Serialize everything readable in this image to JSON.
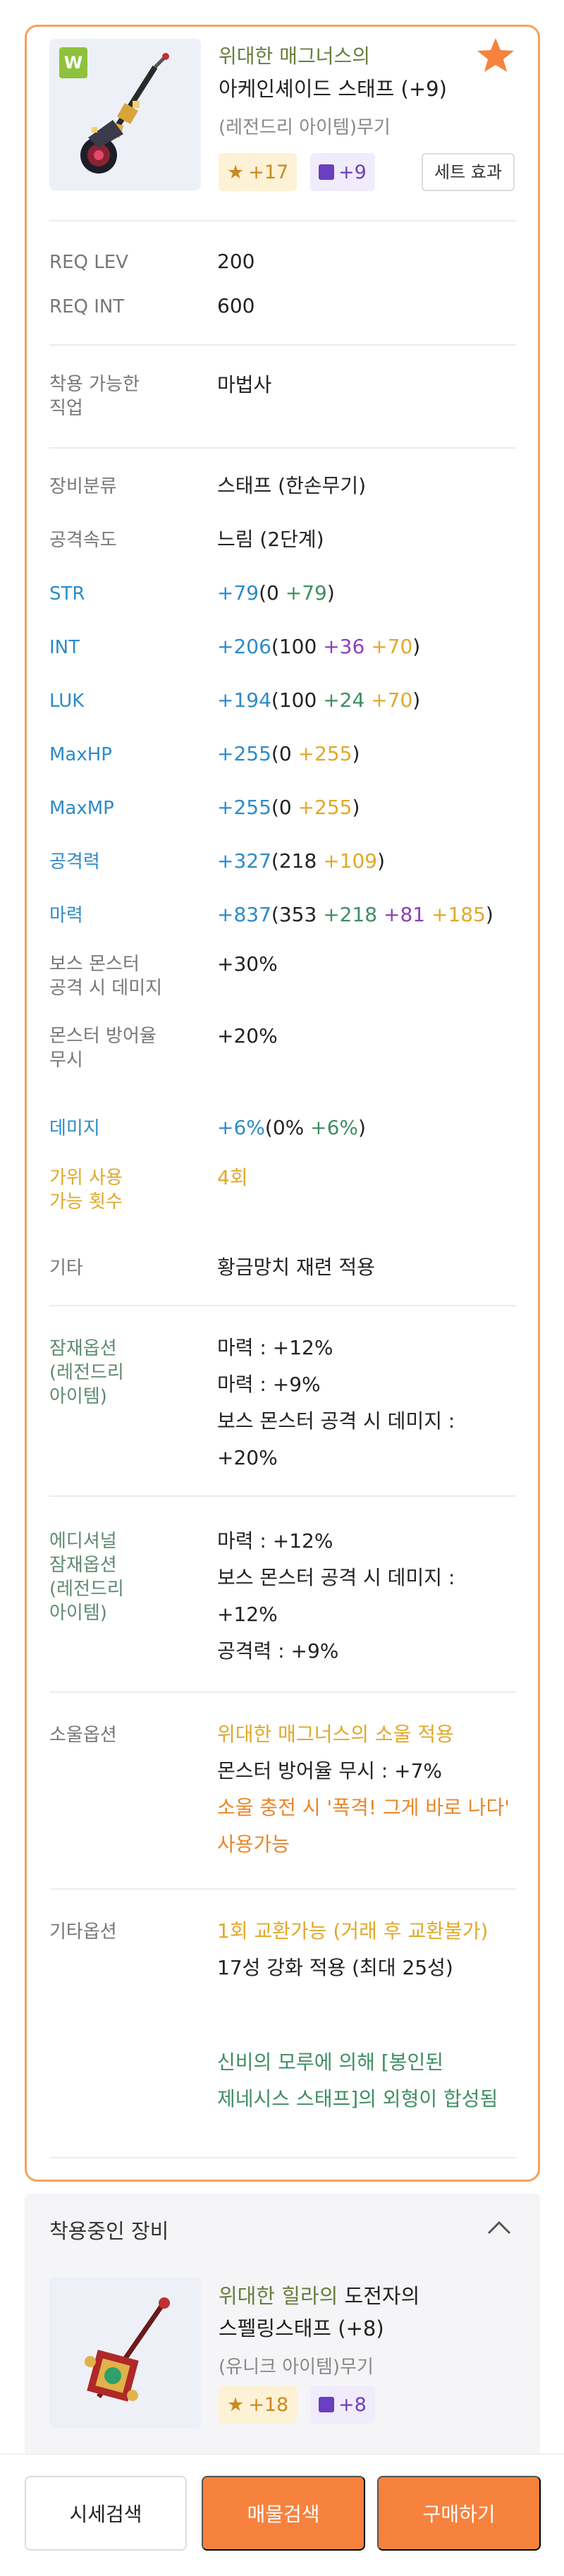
{
  "item": {
    "prefix": "위대한 매그너스의",
    "name": "아케인셰이드 스태프 (+9)",
    "rarity_type": "(레전드리 아이템)무기",
    "badge": "W",
    "star_force": "+17",
    "scroll_count": "+9",
    "set_effect_label": "세트 효과",
    "favorite_icon": "star-icon",
    "accent_color": "#f6823e"
  },
  "requirements": {
    "req_lev_label": "REQ LEV",
    "req_lev_value": "200",
    "req_int_label": "REQ INT",
    "req_int_value": "600"
  },
  "job": {
    "label_line1": "착용 가능한",
    "label_line2": "직업",
    "value": "마법사"
  },
  "stats": {
    "category_label": "장비분류",
    "category_value": "스태프 (한손무기)",
    "speed_label": "공격속도",
    "speed_value": "느림 (2단계)",
    "str": {
      "label": "STR",
      "total": "+79",
      "open": "(0 ",
      "add": "+79",
      "close": ")"
    },
    "int": {
      "label": "INT",
      "total": "+206",
      "open": "(100 ",
      "flame": "+36",
      "star": "+70",
      "close": ")"
    },
    "luk": {
      "label": "LUK",
      "total": "+194",
      "open": "(100 ",
      "flame": "+24",
      "star": "+70",
      "close": ")"
    },
    "maxhp": {
      "label": "MaxHP",
      "total": "+255",
      "open": "(0 ",
      "star": "+255",
      "close": ")"
    },
    "maxmp": {
      "label": "MaxMP",
      "total": "+255",
      "open": "(0 ",
      "star": "+255",
      "close": ")"
    },
    "att": {
      "label": "공격력",
      "total": "+327",
      "open": "(218 ",
      "star": "+109",
      "close": ")"
    },
    "matt": {
      "label": "마력",
      "total": "+837",
      "open": "(353 ",
      "flame": "+218",
      "scroll": "+81",
      "star": "+185",
      "close": ")"
    },
    "boss_label_1": "보스 몬스터",
    "boss_label_2": "공격 시 데미지",
    "boss_value": "+30%",
    "ied_label_1": "몬스터 방어율",
    "ied_label_2": "무시",
    "ied_value": "+20%",
    "dmg": {
      "label": "데미지",
      "total": "+6%",
      "open": "(0% ",
      "flame": "+6%",
      "close": ")"
    },
    "scissors_label_1": "가위 사용",
    "scissors_label_2": "가능 횟수",
    "scissors_value": "4회",
    "etc_label": "기타",
    "etc_value": "황금망치 재련 적용"
  },
  "potential": {
    "label_1": "잠재옵션",
    "label_2": "(레전드리",
    "label_3": "아이템)",
    "line1": "마력 : +12%",
    "line2": "마력 : +9%",
    "line3": "보스 몬스터 공격 시 데미지 :",
    "line4": "+20%"
  },
  "additional": {
    "label_1": "에디셔널",
    "label_2": "잠재옵션",
    "label_3": "(레전드리",
    "label_4": "아이템)",
    "line1": "마력 : +12%",
    "line2": "보스 몬스터 공격 시 데미지 :",
    "line3": "+12%",
    "line4": "공격력 : +9%"
  },
  "soul": {
    "label": "소울옵션",
    "line1": "위대한 매그너스의 소울 적용",
    "line2": "몬스터 방어율 무시 : +7%",
    "line3": "소울 충전 시 '폭격! 그게 바로 나다'",
    "line4": "사용가능"
  },
  "other": {
    "label": "기타옵션",
    "line1": "1회 교환가능 (거래 후 교환불가)",
    "line2": "17성 강화 적용 (최대 25성)",
    "line3": "신비의 모루에 의해 [봉인된",
    "line4": "제네시스 스태프]의 외형이 합성됨"
  },
  "equipped": {
    "header": "착용중인 장비",
    "prefix": "위대한 힐라의",
    "prefix_rest": " 도전자의",
    "name": "스펠링스태프 (+8)",
    "rarity_type": "(유니크 아이템)무기",
    "star_force": "+18",
    "scroll_count": "+8",
    "collapse_icon": "chevron-up-icon"
  },
  "actions": {
    "price_label": "시세검색",
    "listing_label": "매물검색",
    "buy_label": "구매하기"
  }
}
